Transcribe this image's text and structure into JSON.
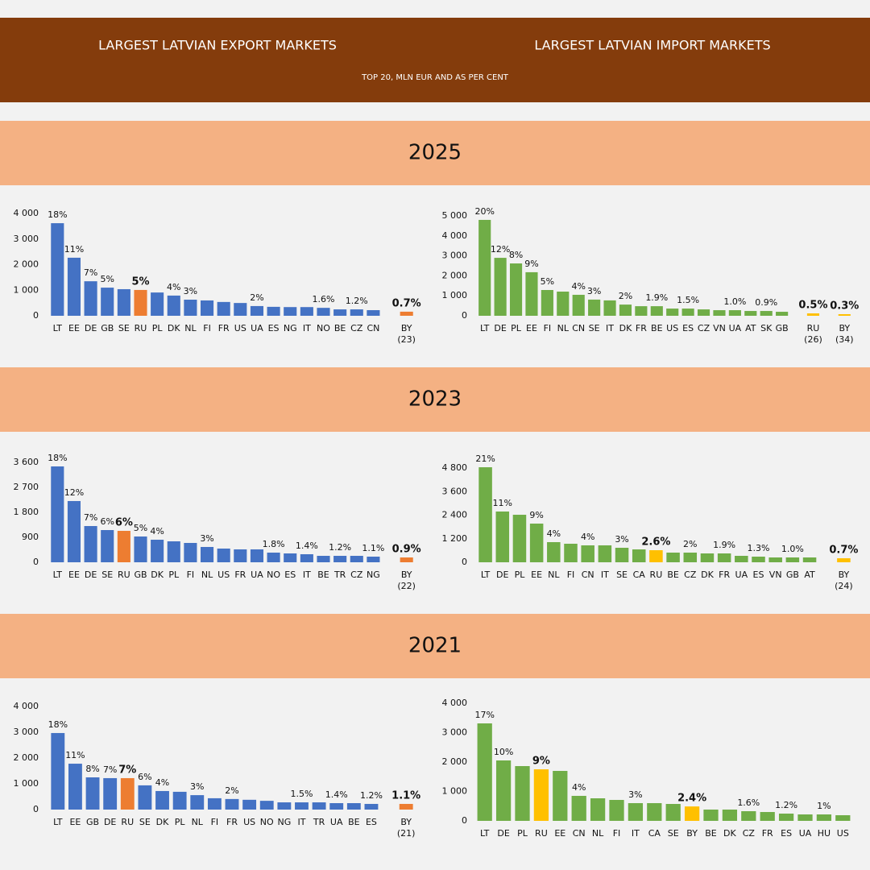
{
  "header": {
    "export_title": "LARGEST LATVIAN EXPORT MARKETS",
    "import_title": "LARGEST LATVIAN IMPORT MARKETS",
    "subtitle": "TOP 20, MLN EUR AND AS PER CENT"
  },
  "years": [
    "2025",
    "2023",
    "2021"
  ],
  "chart_data": [
    {
      "type": "bar",
      "categories": [
        "LT",
        "EE",
        "DE",
        "GB",
        "SE",
        "RU",
        "PL",
        "DK",
        "NL",
        "FI",
        "FR",
        "US",
        "UA",
        "ES",
        "NG",
        "IT",
        "NO",
        "BE",
        "CZ",
        "CN",
        "BY (23)"
      ],
      "values": [
        3620,
        2270,
        1350,
        1100,
        1040,
        1010,
        910,
        790,
        630,
        600,
        540,
        500,
        380,
        350,
        340,
        340,
        310,
        250,
        250,
        220,
        160
      ],
      "share_labels": [
        "18%",
        "11%",
        "7%",
        "5%",
        null,
        "5%",
        null,
        "4%",
        "3%",
        null,
        null,
        null,
        "2%",
        null,
        null,
        null,
        "1.6%",
        null,
        "1.2%",
        null,
        "0.7%"
      ],
      "color": "#4472c4",
      "highlight": [
        "RU",
        "BY (23)"
      ],
      "highlight_color": "#ed7d31",
      "ylim": [
        0,
        4000
      ],
      "yticks": [
        0,
        {
          "value": 1000,
          "label": "1 000"
        },
        {
          "value": 2000,
          "label": "2 000"
        },
        {
          "value": 3000,
          "label": "3 000"
        },
        {
          "value": 4000,
          "label": "4 000"
        }
      ]
    },
    {
      "type": "bar",
      "categories": [
        "LT",
        "DE",
        "PL",
        "EE",
        "FI",
        "NL",
        "CN",
        "SE",
        "IT",
        "DK",
        "FR",
        "BE",
        "US",
        "ES",
        "CZ",
        "VN",
        "UA",
        "AT",
        "SK",
        "GB",
        "RU (26)",
        "BY (34)"
      ],
      "values": [
        4800,
        2900,
        2620,
        2180,
        1290,
        1210,
        1050,
        810,
        770,
        560,
        480,
        480,
        360,
        360,
        320,
        280,
        280,
        240,
        240,
        200,
        120,
        80
      ],
      "share_labels": [
        "20%",
        "12%",
        "8%",
        "9%",
        "5%",
        null,
        "4%",
        "3%",
        null,
        "2%",
        null,
        "1.9%",
        null,
        "1.5%",
        null,
        null,
        "1.0%",
        null,
        "0.9%",
        null,
        "0.5%",
        "0.3%"
      ],
      "color": "#70ad47",
      "highlight": [
        "RU (26)",
        "BY (34)"
      ],
      "highlight_color": "#ffc000",
      "ylim": [
        0,
        5000
      ],
      "yticks": [
        0,
        {
          "value": 1000,
          "label": "1 000"
        },
        {
          "value": 2000,
          "label": "2 000"
        },
        {
          "value": 3000,
          "label": "3 000"
        },
        {
          "value": 4000,
          "label": "4 000"
        },
        {
          "value": 5000,
          "label": "5 000"
        }
      ]
    },
    {
      "type": "bar",
      "categories": [
        "LT",
        "EE",
        "DE",
        "SE",
        "RU",
        "GB",
        "DK",
        "PL",
        "FI",
        "NL",
        "US",
        "FR",
        "UA",
        "NO",
        "ES",
        "IT",
        "BE",
        "TR",
        "CZ",
        "NG",
        "BY (22)"
      ],
      "values": [
        3455,
        2207,
        1306,
        1161,
        1132,
        929,
        813,
        755,
        697,
        552,
        494,
        465,
        465,
        348,
        319,
        290,
        232,
        232,
        232,
        203,
        174
      ],
      "share_labels": [
        "18%",
        "12%",
        "7%",
        "6%",
        "6%",
        "5%",
        "4%",
        null,
        null,
        "3%",
        null,
        null,
        null,
        "1.8%",
        null,
        "1.4%",
        null,
        "1.2%",
        null,
        "1.1%",
        "0.9%"
      ],
      "color": "#4472c4",
      "highlight": [
        "RU",
        "BY (22)"
      ],
      "highlight_color": "#ed7d31",
      "ylim": [
        0,
        3600
      ],
      "yticks": [
        0,
        900,
        {
          "value": 1800,
          "label": "1 800"
        },
        {
          "value": 2700,
          "label": "2 700"
        },
        {
          "value": 3600,
          "label": "3 600"
        }
      ]
    },
    {
      "type": "bar",
      "categories": [
        "LT",
        "DE",
        "PL",
        "EE",
        "NL",
        "FI",
        "CN",
        "IT",
        "SE",
        "CA",
        "RU",
        "BE",
        "CZ",
        "DK",
        "FR",
        "UA",
        "ES",
        "VN",
        "GB",
        "AT",
        "BY (24)"
      ],
      "values": [
        4840,
        2585,
        2420,
        1970,
        1026,
        944,
        862,
        862,
        738,
        656,
        615,
        492,
        492,
        451,
        451,
        328,
        287,
        246,
        246,
        246,
        205
      ],
      "share_labels": [
        "21%",
        "11%",
        null,
        "9%",
        "4%",
        null,
        "4%",
        null,
        "3%",
        null,
        "2.6%",
        null,
        "2%",
        null,
        "1.9%",
        null,
        "1.3%",
        null,
        "1.0%",
        null,
        "0.7%"
      ],
      "color": "#70ad47",
      "highlight": [
        "RU",
        "BY (24)"
      ],
      "highlight_color": "#ffc000",
      "ylim": [
        0,
        4800
      ],
      "yticks": [
        0,
        {
          "value": 1200,
          "label": "1 200"
        },
        {
          "value": 2400,
          "label": "2 400"
        },
        {
          "value": 3600,
          "label": "3 600"
        },
        {
          "value": 4800,
          "label": "4 800"
        }
      ]
    },
    {
      "type": "bar",
      "categories": [
        "LT",
        "EE",
        "GB",
        "DE",
        "RU",
        "SE",
        "DK",
        "PL",
        "NL",
        "FI",
        "FR",
        "US",
        "NO",
        "NG",
        "IT",
        "TR",
        "UA",
        "BE",
        "ES",
        "BY (21)"
      ],
      "values": [
        2970,
        1780,
        1250,
        1220,
        1220,
        940,
        720,
        690,
        560,
        440,
        410,
        380,
        340,
        280,
        280,
        280,
        250,
        250,
        220,
        220
      ],
      "share_labels": [
        "18%",
        "11%",
        "8%",
        "7%",
        "7%",
        "6%",
        "4%",
        null,
        "3%",
        null,
        "2%",
        null,
        null,
        null,
        "1.5%",
        null,
        "1.4%",
        null,
        "1.2%",
        "1.1%"
      ],
      "color": "#4472c4",
      "highlight": [
        "RU",
        "BY (21)"
      ],
      "highlight_color": "#ed7d31",
      "ylim": [
        0,
        4000
      ],
      "yticks": [
        0,
        {
          "value": 1000,
          "label": "1 000"
        },
        {
          "value": 2000,
          "label": "2 000"
        },
        {
          "value": 3000,
          "label": "3 000"
        },
        {
          "value": 4000,
          "label": "4 000"
        }
      ]
    },
    {
      "type": "bar",
      "categories": [
        "LT",
        "DE",
        "PL",
        "RU",
        "EE",
        "CN",
        "NL",
        "FI",
        "IT",
        "CA",
        "SE",
        "BY",
        "BE",
        "DK",
        "CZ",
        "FR",
        "ES",
        "UA",
        "HU",
        "US"
      ],
      "values": [
        3315,
        2055,
        1863,
        1753,
        1699,
        850,
        767,
        712,
        603,
        603,
        575,
        490,
        384,
        384,
        329,
        301,
        247,
        219,
        219,
        192
      ],
      "share_labels": [
        "17%",
        "10%",
        null,
        "9%",
        null,
        "4%",
        null,
        null,
        "3%",
        null,
        null,
        "2.4%",
        null,
        null,
        "1.6%",
        null,
        "1.2%",
        null,
        "1%",
        null
      ],
      "color": "#70ad47",
      "highlight": [
        "RU",
        "BY"
      ],
      "highlight_color": "#ffc000",
      "ylim": [
        0,
        4000
      ],
      "yticks": [
        0,
        {
          "value": 1000,
          "label": "1 000"
        },
        {
          "value": 2000,
          "label": "2 000"
        },
        {
          "value": 3000,
          "label": "3 000"
        },
        {
          "value": 4000,
          "label": "4 000"
        }
      ]
    }
  ]
}
